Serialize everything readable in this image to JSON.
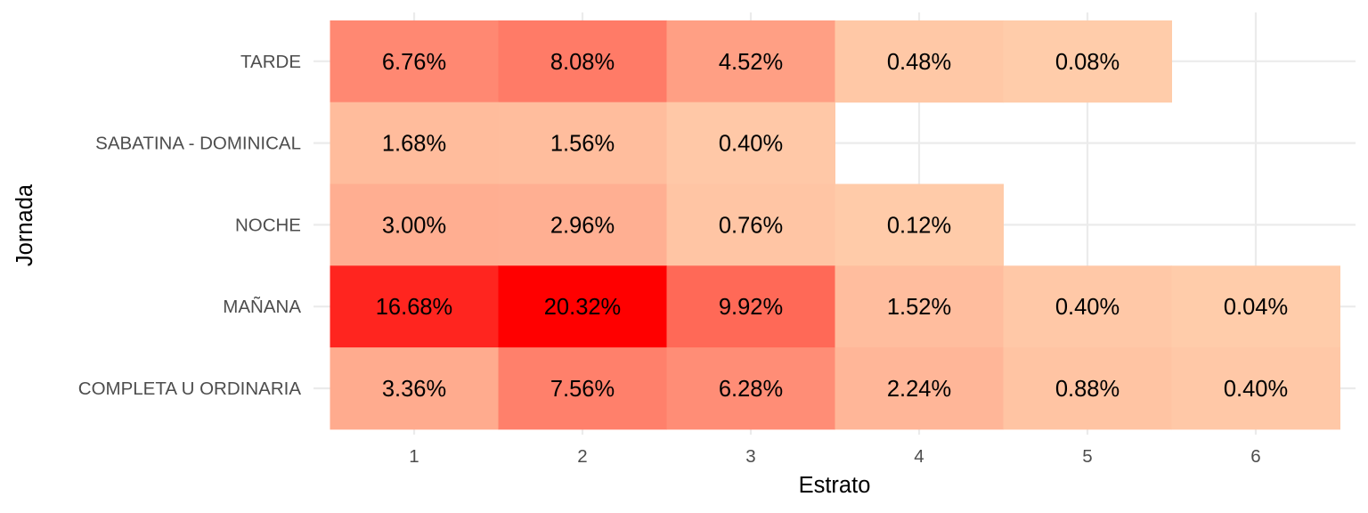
{
  "chart_data": {
    "type": "heatmap",
    "title": "",
    "xlabel": "Estrato",
    "ylabel": "Jornada",
    "x_categories": [
      "1",
      "2",
      "3",
      "4",
      "5",
      "6"
    ],
    "y_categories": [
      "COMPLETA U ORDINARIA",
      "MAÑANA",
      "NOCHE",
      "SABATINA - DOMINICAL",
      "TARDE"
    ],
    "value_unit": "%",
    "color_low": "#ffccaa",
    "color_high": "#ff0000",
    "grid": true,
    "legend": "none",
    "cells": [
      {
        "x": "1",
        "y": "TARDE",
        "value": 6.76,
        "label": "6.76%"
      },
      {
        "x": "2",
        "y": "TARDE",
        "value": 8.08,
        "label": "8.08%"
      },
      {
        "x": "3",
        "y": "TARDE",
        "value": 4.52,
        "label": "4.52%"
      },
      {
        "x": "4",
        "y": "TARDE",
        "value": 0.48,
        "label": "0.48%"
      },
      {
        "x": "5",
        "y": "TARDE",
        "value": 0.08,
        "label": "0.08%"
      },
      {
        "x": "1",
        "y": "SABATINA - DOMINICAL",
        "value": 1.68,
        "label": "1.68%"
      },
      {
        "x": "2",
        "y": "SABATINA - DOMINICAL",
        "value": 1.56,
        "label": "1.56%"
      },
      {
        "x": "3",
        "y": "SABATINA - DOMINICAL",
        "value": 0.4,
        "label": "0.40%"
      },
      {
        "x": "1",
        "y": "NOCHE",
        "value": 3.0,
        "label": "3.00%"
      },
      {
        "x": "2",
        "y": "NOCHE",
        "value": 2.96,
        "label": "2.96%"
      },
      {
        "x": "3",
        "y": "NOCHE",
        "value": 0.76,
        "label": "0.76%"
      },
      {
        "x": "4",
        "y": "NOCHE",
        "value": 0.12,
        "label": "0.12%"
      },
      {
        "x": "1",
        "y": "MAÑANA",
        "value": 16.68,
        "label": "16.68%"
      },
      {
        "x": "2",
        "y": "MAÑANA",
        "value": 20.32,
        "label": "20.32%"
      },
      {
        "x": "3",
        "y": "MAÑANA",
        "value": 9.92,
        "label": "9.92%"
      },
      {
        "x": "4",
        "y": "MAÑANA",
        "value": 1.52,
        "label": "1.52%"
      },
      {
        "x": "5",
        "y": "MAÑANA",
        "value": 0.4,
        "label": "0.40%"
      },
      {
        "x": "6",
        "y": "MAÑANA",
        "value": 0.04,
        "label": "0.04%"
      },
      {
        "x": "1",
        "y": "COMPLETA U ORDINARIA",
        "value": 3.36,
        "label": "3.36%"
      },
      {
        "x": "2",
        "y": "COMPLETA U ORDINARIA",
        "value": 7.56,
        "label": "7.56%"
      },
      {
        "x": "3",
        "y": "COMPLETA U ORDINARIA",
        "value": 6.28,
        "label": "6.28%"
      },
      {
        "x": "4",
        "y": "COMPLETA U ORDINARIA",
        "value": 2.24,
        "label": "2.24%"
      },
      {
        "x": "5",
        "y": "COMPLETA U ORDINARIA",
        "value": 0.88,
        "label": "0.88%"
      },
      {
        "x": "6",
        "y": "COMPLETA U ORDINARIA",
        "value": 0.4,
        "label": "0.40%"
      }
    ]
  }
}
